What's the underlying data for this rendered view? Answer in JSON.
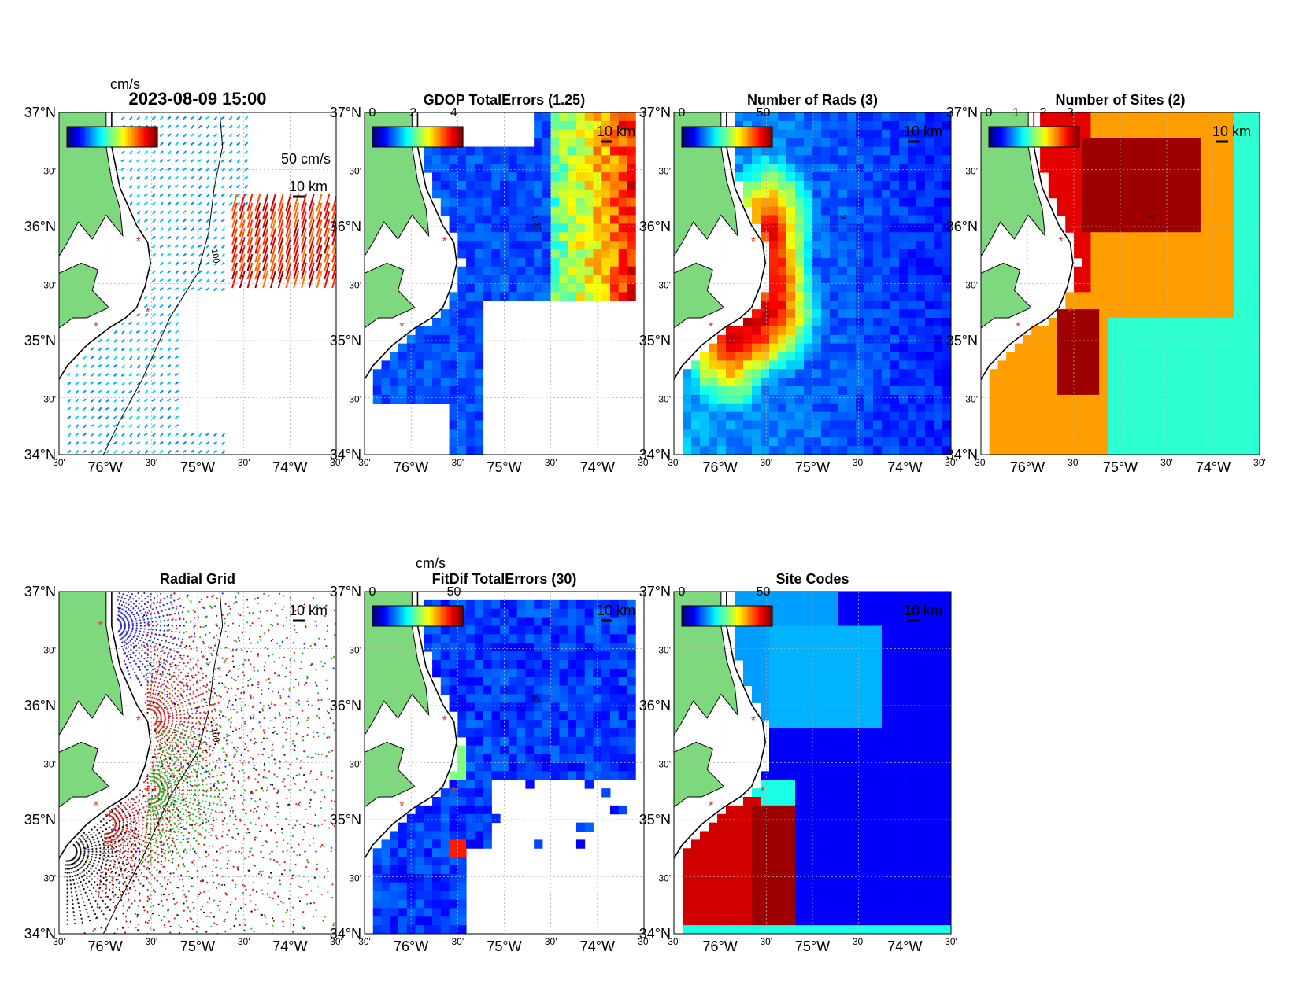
{
  "figure": {
    "panels": [
      {
        "id": "vectors",
        "title": "2023-08-09 15:00",
        "colorbar": {
          "unit": "cm/s",
          "ticks": []
        },
        "scale_label": "10 km",
        "vector_scale_label": "50 cm/s",
        "isobath_label": "100",
        "kind": "vectors"
      },
      {
        "id": "gdop",
        "title": "GDOP TotalErrors (1.25)",
        "colorbar": {
          "unit": "",
          "ticks": [
            "0",
            "2",
            "4"
          ]
        },
        "scale_label": "10 km",
        "isobath_label": "1.25",
        "kind": "gdop"
      },
      {
        "id": "nrads",
        "title": "Number of Rads (3)",
        "colorbar": {
          "unit": "",
          "ticks": [
            "0",
            "50"
          ]
        },
        "scale_label": "10 km",
        "isobath_label": "3",
        "kind": "nrads"
      },
      {
        "id": "nsites",
        "title": "Number of Sites (2)",
        "colorbar": {
          "unit": "",
          "ticks": [
            "0",
            "1",
            "2",
            "3"
          ]
        },
        "scale_label": "10 km",
        "isobath_label": "2",
        "kind": "nsites"
      },
      {
        "id": "radgrid",
        "title": "Radial Grid",
        "colorbar": null,
        "scale_label": "10 km",
        "isobath_label": "100",
        "kind": "radgrid"
      },
      {
        "id": "fitdif",
        "title": "FitDif TotalErrors (30)",
        "colorbar": {
          "unit": "cm/s",
          "ticks": [
            "0",
            "50"
          ]
        },
        "scale_label": "10 km",
        "isobath_label": "30",
        "kind": "fitdif"
      },
      {
        "id": "sitecodes",
        "title": "Site Codes",
        "colorbar": {
          "unit": "",
          "ticks": [
            "0",
            "50"
          ]
        },
        "scale_label": "10 km",
        "isobath_label": "",
        "kind": "sitecodes"
      }
    ],
    "axes": {
      "lat_ticks": [
        {
          "label": "37°N",
          "lat": 37.0
        },
        {
          "label": "30'",
          "lat": 36.5
        },
        {
          "label": "36°N",
          "lat": 36.0
        },
        {
          "label": "30'",
          "lat": 35.5
        },
        {
          "label": "35°N",
          "lat": 35.0
        },
        {
          "label": "30'",
          "lat": 34.5
        },
        {
          "label": "34°N",
          "lat": 34.0
        }
      ],
      "lon_ticks": [
        {
          "label": "30'",
          "lon": -76.5
        },
        {
          "label": "76°W",
          "lon": -76.0
        },
        {
          "label": "30'",
          "lon": -75.5
        },
        {
          "label": "75°W",
          "lon": -75.0
        },
        {
          "label": "30'",
          "lon": -74.5
        },
        {
          "label": "74°W",
          "lon": -74.0
        },
        {
          "label": "30'",
          "lon": -73.5
        }
      ],
      "lon_range": [
        -76.5,
        -73.5
      ],
      "lat_range": [
        34.0,
        37.0
      ]
    },
    "site_markers": [
      {
        "lon": -76.05,
        "lat": 36.7
      },
      {
        "lon": -75.64,
        "lat": 35.87
      },
      {
        "lon": -75.54,
        "lat": 35.25
      },
      {
        "lon": -76.1,
        "lat": 35.12
      },
      {
        "lon": -76.55,
        "lat": 34.76
      }
    ],
    "colors": {
      "land": "#7ed87e",
      "coast": "#000000",
      "site": "#e53030",
      "grid": "#c8c8c8"
    }
  }
}
